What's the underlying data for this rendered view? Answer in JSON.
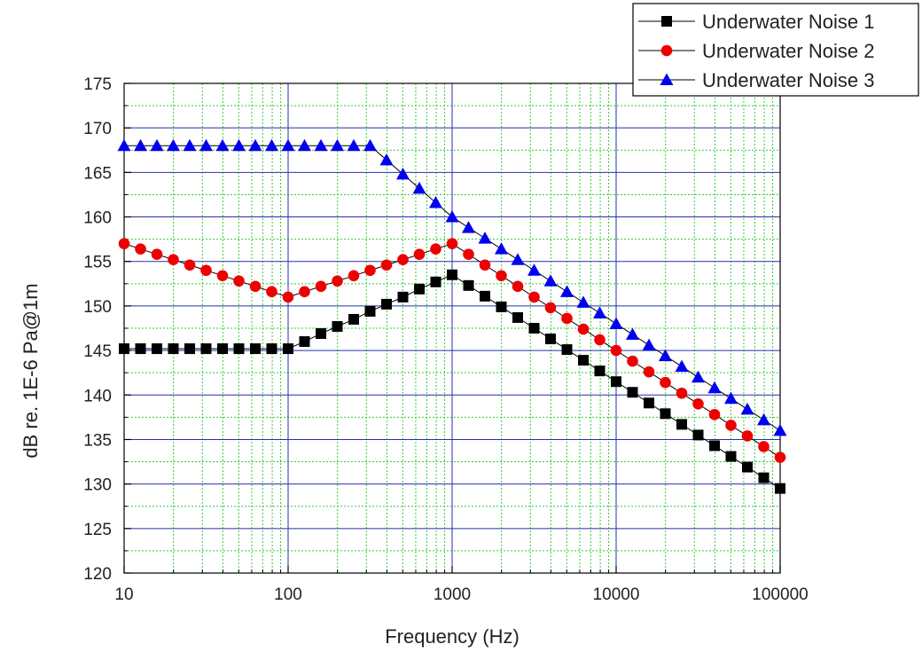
{
  "chart_data": {
    "type": "line",
    "xlabel": "Frequency (Hz)",
    "ylabel": "dB re. 1E-6 Pa@1m",
    "xscale": "log",
    "xlim": [
      10,
      100000
    ],
    "ylim": [
      120,
      175
    ],
    "xticks": [
      10,
      100,
      1000,
      10000,
      100000
    ],
    "xtick_labels": [
      "10",
      "100",
      "1000",
      "10000",
      "100000"
    ],
    "yticks": [
      120,
      125,
      130,
      135,
      140,
      145,
      150,
      155,
      160,
      165,
      170,
      175
    ],
    "ytick_labels": [
      "120",
      "125",
      "130",
      "135",
      "140",
      "145",
      "150",
      "155",
      "160",
      "165",
      "170",
      "175"
    ],
    "grid": {
      "major": true,
      "minor": true,
      "major_color": "#2233aa",
      "minor_color": "#33cc33"
    },
    "legend": {
      "placement": "top-right, outside plot"
    },
    "x": [
      10,
      12.59,
      15.85,
      19.95,
      25.12,
      31.62,
      39.81,
      50.12,
      63.1,
      79.43,
      100,
      125.9,
      158.5,
      199.5,
      251.2,
      316.2,
      398.1,
      501.2,
      631,
      794.3,
      1000,
      1259,
      1585,
      1995,
      2512,
      3162,
      3981,
      5012,
      6310,
      7943,
      10000,
      12590,
      15850,
      19950,
      25120,
      31620,
      39810,
      50120,
      63100,
      79430,
      100000
    ],
    "series": [
      {
        "name": "Underwater Noise 1",
        "marker": "square",
        "color": "#000000",
        "values": [
          145.2,
          145.2,
          145.2,
          145.2,
          145.2,
          145.2,
          145.2,
          145.2,
          145.2,
          145.2,
          145.2,
          146.0,
          146.9,
          147.7,
          148.5,
          149.4,
          150.2,
          151.0,
          151.9,
          152.7,
          153.5,
          152.3,
          151.1,
          149.9,
          148.7,
          147.5,
          146.3,
          145.1,
          143.9,
          142.7,
          141.5,
          140.3,
          139.1,
          137.9,
          136.7,
          135.5,
          134.3,
          133.1,
          131.9,
          130.7,
          129.5
        ]
      },
      {
        "name": "Underwater Noise 2",
        "marker": "circle",
        "color": "#ee0000",
        "values": [
          157.0,
          156.4,
          155.8,
          155.2,
          154.6,
          154.0,
          153.4,
          152.8,
          152.2,
          151.6,
          151.0,
          151.6,
          152.2,
          152.8,
          153.4,
          154.0,
          154.6,
          155.2,
          155.8,
          156.4,
          157.0,
          155.8,
          154.6,
          153.4,
          152.2,
          151.0,
          149.8,
          148.6,
          147.4,
          146.2,
          145.0,
          143.8,
          142.6,
          141.4,
          140.2,
          139.0,
          137.8,
          136.6,
          135.4,
          134.2,
          133.0
        ]
      },
      {
        "name": "Underwater Noise 3",
        "marker": "triangle",
        "color": "#0000ee",
        "values": [
          168.0,
          168.0,
          168.0,
          168.0,
          168.0,
          168.0,
          168.0,
          168.0,
          168.0,
          168.0,
          168.0,
          168.0,
          168.0,
          168.0,
          168.0,
          168.0,
          166.4,
          164.8,
          163.2,
          161.6,
          160.0,
          158.8,
          157.6,
          156.4,
          155.2,
          154.0,
          152.8,
          151.6,
          150.4,
          149.2,
          148.0,
          146.8,
          145.6,
          144.4,
          143.2,
          142.0,
          140.8,
          139.6,
          138.4,
          137.2,
          136.0
        ]
      }
    ]
  }
}
